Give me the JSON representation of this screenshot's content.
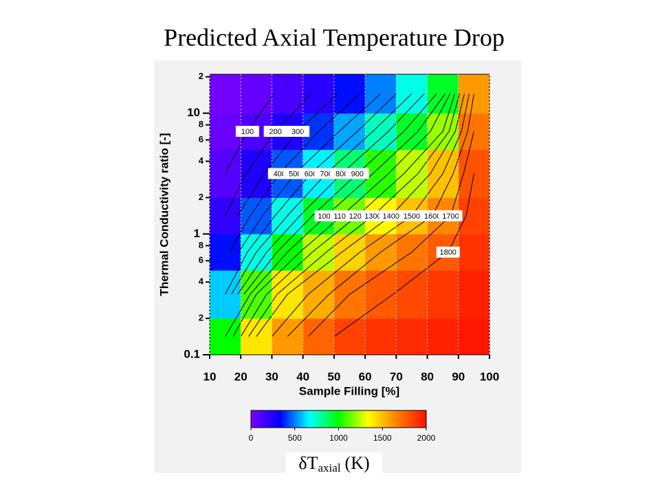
{
  "chart_data": {
    "type": "heatmap",
    "title": "Predicted Axial Temperature Drop",
    "x_label": "Sample Filling [%]",
    "y_label": "Thermal Conductivity ratio [-]",
    "xlim": [
      10,
      100
    ],
    "xticks": [
      10,
      20,
      30,
      40,
      50,
      60,
      70,
      80,
      90,
      100
    ],
    "ylim": [
      0.1,
      21
    ],
    "y_log": true,
    "yticks": [
      {
        "value": 0.1,
        "label": "0.1"
      },
      {
        "value": 0.2,
        "label": "2"
      },
      {
        "value": 0.4,
        "label": "4"
      },
      {
        "value": 0.6,
        "label": "6"
      },
      {
        "value": 0.8,
        "label": "8"
      },
      1,
      {
        "value": 2,
        "label": "2"
      },
      {
        "value": 4,
        "label": "4"
      },
      {
        "value": 6,
        "label": "6"
      },
      {
        "value": 8,
        "label": "8"
      },
      10,
      {
        "value": 20,
        "label": "2"
      }
    ],
    "grid": true,
    "x_edges": [
      10,
      20,
      30,
      40,
      50,
      60,
      70,
      80,
      90,
      100
    ],
    "y_edges": [
      0.1,
      0.2,
      0.5,
      1,
      2,
      5,
      10,
      21
    ],
    "z": [
      [
        1000,
        1400,
        1600,
        1750,
        1850,
        1900,
        1920,
        1950,
        1980
      ],
      [
        600,
        1100,
        1400,
        1550,
        1700,
        1780,
        1830,
        1880,
        1950
      ],
      [
        350,
        700,
        1000,
        1250,
        1450,
        1600,
        1700,
        1780,
        1900
      ],
      [
        200,
        450,
        700,
        950,
        1150,
        1350,
        1500,
        1650,
        1850
      ],
      [
        100,
        250,
        450,
        650,
        850,
        1050,
        1250,
        1500,
        1800
      ],
      [
        50,
        120,
        250,
        400,
        550,
        750,
        950,
        1200,
        1700
      ],
      [
        20,
        60,
        130,
        220,
        350,
        500,
        700,
        950,
        1600
      ]
    ],
    "contour_levels": [
      100,
      200,
      300,
      400,
      500,
      600,
      700,
      800,
      900,
      1000,
      1100,
      1200,
      1300,
      1400,
      1500,
      1600,
      1700,
      1800
    ],
    "zlim": [
      0,
      2000
    ],
    "zticks": [
      0,
      500,
      1000,
      1500,
      2000
    ],
    "colormap": [
      "#7a00ff",
      "#0000ff",
      "#00ffff",
      "#00ff00",
      "#ffff00",
      "#ff8000",
      "#ff1000"
    ],
    "colorbar_label": {
      "symbol": "δ",
      "main": "T",
      "subscript": "axial",
      "unit": "(K)"
    }
  }
}
